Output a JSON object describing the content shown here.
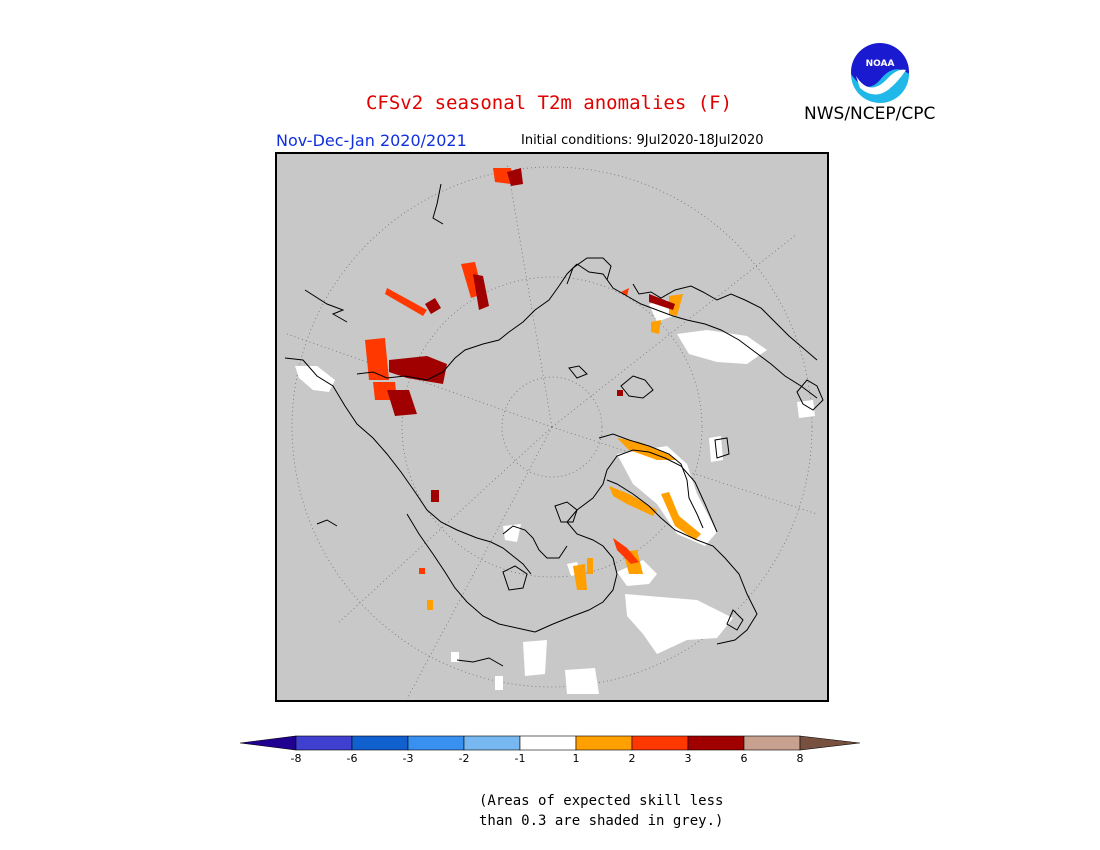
{
  "header": {
    "title": "CFSv2 seasonal T2m anomalies (F)",
    "agency": "NWS/NCEP/CPC",
    "season": "Nov-Dec-Jan 2020/2021",
    "initial_conditions": "Initial conditions: 9Jul2020-18Jul2020",
    "logo_text": "NOAA"
  },
  "legend": {
    "ticks": [
      "-8",
      "-6",
      "-3",
      "-2",
      "-1",
      "1",
      "2",
      "3",
      "6",
      "8"
    ],
    "colors": [
      "#200090",
      "#4040d0",
      "#1060d0",
      "#3890f0",
      "#78b8f0",
      "#ffffff",
      "#ffa000",
      "#ff3800",
      "#a00000",
      "#c8a090",
      "#785040"
    ]
  },
  "colors": {
    "mask_grey": "#c8c8c8",
    "near_normal": "#ffffff",
    "warm_1_2": "#ffa000",
    "warm_2_3": "#ff3800",
    "warm_3_6": "#a00000",
    "title_red": "#e00000",
    "season_blue": "#1030e0"
  },
  "note": {
    "line1": "(Areas of expected skill less",
    "line2": "than 0.3 are shaded in grey.)"
  },
  "map": {
    "projection": "north-polar-stereographic",
    "graticule": "dotted"
  }
}
